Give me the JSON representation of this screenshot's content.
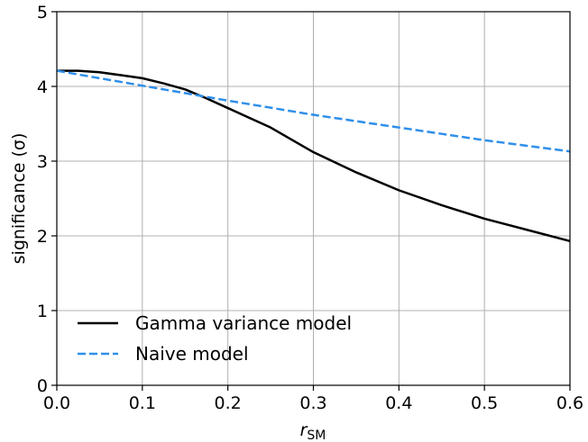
{
  "chart_data": {
    "type": "line",
    "title": "",
    "xlabel": "r",
    "xlabel_sub": "SM",
    "ylabel": "significance   (σ)",
    "xlim": [
      0.0,
      0.6
    ],
    "ylim": [
      0,
      5
    ],
    "xticks": [
      0.0,
      0.1,
      0.2,
      0.3,
      0.4,
      0.5,
      0.6
    ],
    "xtick_labels": [
      "0.0",
      "0.1",
      "0.2",
      "0.3",
      "0.4",
      "0.5",
      "0.6"
    ],
    "yticks": [
      0,
      1,
      2,
      3,
      4,
      5
    ],
    "ytick_labels": [
      "0",
      "1",
      "2",
      "3",
      "4",
      "5"
    ],
    "grid": true,
    "legend_position": "bottom-left",
    "series": [
      {
        "name": "Gamma variance model",
        "color": "#000000",
        "dash": "solid",
        "x": [
          0.0,
          0.025,
          0.05,
          0.075,
          0.1,
          0.125,
          0.15,
          0.175,
          0.2,
          0.25,
          0.3,
          0.35,
          0.4,
          0.45,
          0.5,
          0.55,
          0.6
        ],
        "y": [
          4.21,
          4.21,
          4.19,
          4.15,
          4.11,
          4.04,
          3.96,
          3.84,
          3.71,
          3.45,
          3.12,
          2.85,
          2.61,
          2.41,
          2.23,
          2.08,
          1.93
        ]
      },
      {
        "name": "Naive model",
        "color": "#2f8fea",
        "dash": "dashed",
        "x": [
          0.0,
          0.1,
          0.2,
          0.3,
          0.4,
          0.5,
          0.6
        ],
        "y": [
          4.21,
          4.01,
          3.81,
          3.62,
          3.45,
          3.28,
          3.13
        ]
      }
    ]
  }
}
